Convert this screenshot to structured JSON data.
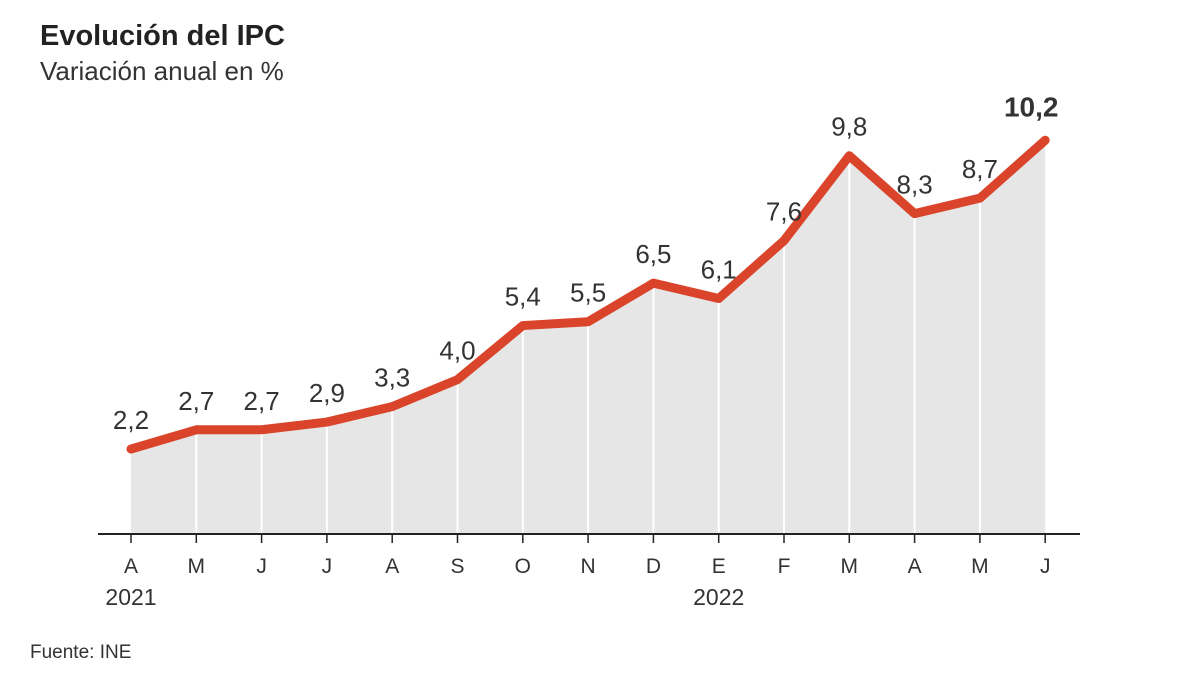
{
  "title": "Evolución del IPC",
  "subtitle": "Variación anual en %",
  "source": "Fuente: INE",
  "colors": {
    "line": "#d9442a",
    "area": "#e6e6e6",
    "axis": "#222222",
    "text": "#333333"
  },
  "chart_data": {
    "type": "area",
    "title": "Evolución del IPC",
    "subtitle": "Variación anual en %",
    "xlabel": "",
    "ylabel": "",
    "categories": [
      "A",
      "M",
      "J",
      "J",
      "A",
      "S",
      "O",
      "N",
      "D",
      "E",
      "F",
      "M",
      "A",
      "M",
      "J"
    ],
    "year_labels": [
      {
        "label": "2021",
        "category_index": 0
      },
      {
        "label": "2022",
        "category_index": 9
      }
    ],
    "values": [
      2.2,
      2.7,
      2.7,
      2.9,
      3.3,
      4.0,
      5.4,
      5.5,
      6.5,
      6.1,
      7.6,
      9.8,
      8.3,
      8.7,
      10.2
    ],
    "data_labels": [
      "2,2",
      "2,7",
      "2,7",
      "2,9",
      "3,3",
      "4,0",
      "5,4",
      "5,5",
      "6,5",
      "6,1",
      "7,6",
      "9,8",
      "8,3",
      "8,7",
      "10,2"
    ],
    "highlight_last": true,
    "ylim": [
      0,
      10.2
    ],
    "grid": false
  }
}
